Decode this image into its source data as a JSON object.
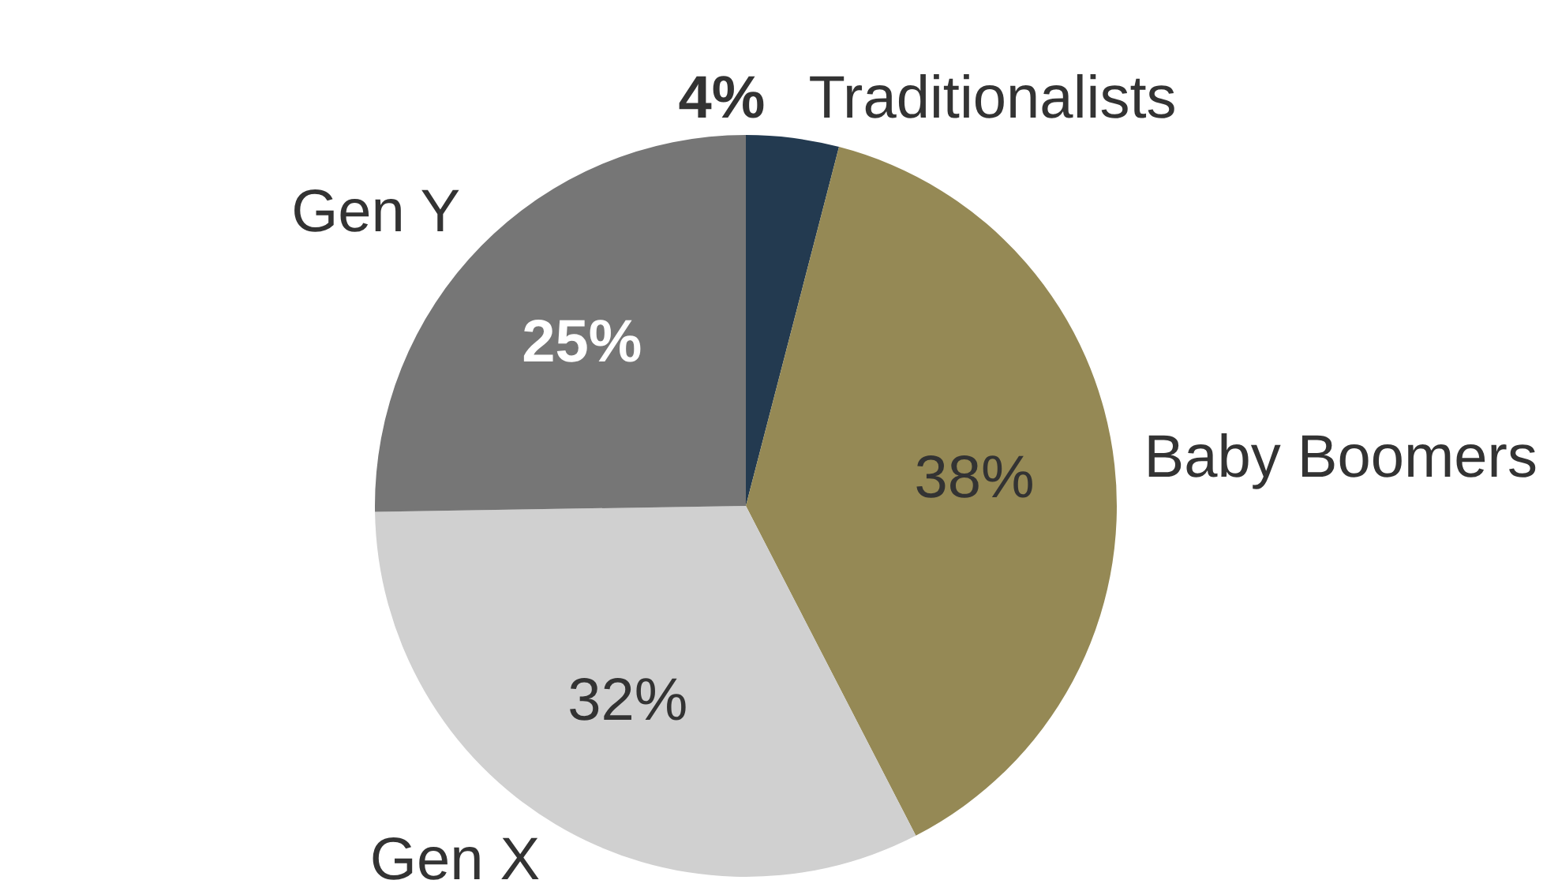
{
  "chart_data": {
    "type": "pie",
    "categories": [
      "Traditionalists",
      "Baby Boomers",
      "Gen X",
      "Gen Y"
    ],
    "values": [
      4,
      38,
      32,
      25
    ],
    "value_labels": [
      "4%",
      "38%",
      "32%",
      "25%"
    ],
    "colors": [
      "#233a50",
      "#958955",
      "#d0d0d0",
      "#767676"
    ],
    "legend": false
  }
}
